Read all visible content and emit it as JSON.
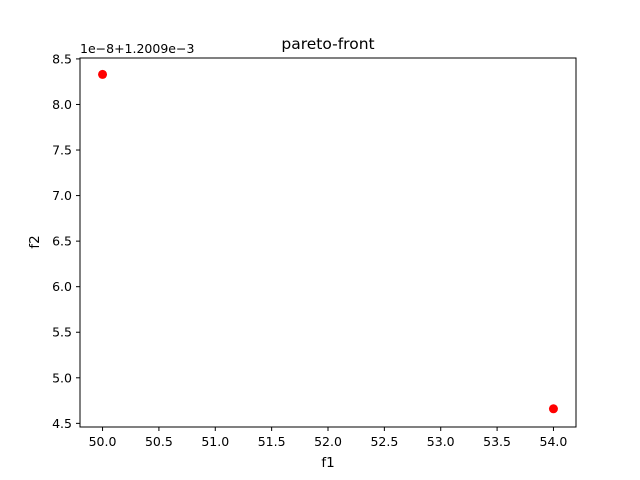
{
  "chart_data": {
    "type": "scatter",
    "title": "pareto-front",
    "xlabel": "f1",
    "ylabel": "f2",
    "y_offset_label": "1e−8+1.2009e−3",
    "xlim": [
      49.8,
      54.2
    ],
    "ylim": [
      4.46,
      8.51
    ],
    "x_ticks": [
      50.0,
      50.5,
      51.0,
      51.5,
      52.0,
      52.5,
      53.0,
      53.5,
      54.0
    ],
    "x_tick_labels": [
      "50.0",
      "50.5",
      "51.0",
      "51.5",
      "52.0",
      "52.5",
      "53.0",
      "53.5",
      "54.0"
    ],
    "y_ticks": [
      4.5,
      5.0,
      5.5,
      6.0,
      6.5,
      7.0,
      7.5,
      8.0,
      8.5
    ],
    "y_tick_labels": [
      "4.5",
      "5.0",
      "5.5",
      "6.0",
      "6.5",
      "7.0",
      "7.5",
      "8.0",
      "8.5"
    ],
    "series": [
      {
        "color": "#ff0000",
        "marker": "circle",
        "points": [
          {
            "x": 50.0,
            "y": 8.33
          },
          {
            "x": 54.0,
            "y": 4.66
          }
        ]
      }
    ],
    "grid": false,
    "legend": "none"
  }
}
